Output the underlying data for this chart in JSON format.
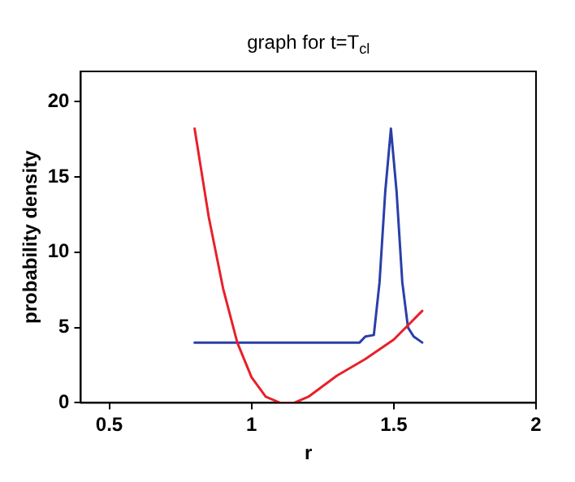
{
  "chart_data": {
    "type": "line",
    "title": "graph for t=T$_{cl}$",
    "xlabel": "r",
    "ylabel": "probability density",
    "xlim": [
      0.4,
      2
    ],
    "xticks": [
      0.5,
      1,
      1.5,
      2
    ],
    "ylim": [
      0,
      22
    ],
    "yticks": [
      0,
      5,
      10,
      15,
      20
    ],
    "marker": "none",
    "series": [
      {
        "color": "#e8202a",
        "x": [
          0.8,
          0.85,
          0.9,
          0.95,
          1.0,
          1.05,
          1.1,
          1.15,
          1.2,
          1.3,
          1.4,
          1.5,
          1.6
        ],
        "values": [
          18.2,
          12.3,
          7.6,
          4,
          1.7,
          0.4,
          0,
          0,
          0.4,
          1.8,
          2.9,
          4.2,
          6.1
        ]
      },
      {
        "color": "#2a3fa8",
        "x": [
          0.8,
          1.38,
          1.4,
          1.43,
          1.45,
          1.47,
          1.49,
          1.51,
          1.53,
          1.55,
          1.57,
          1.6
        ],
        "values": [
          4,
          4,
          4.4,
          4.5,
          8,
          14,
          18.2,
          14,
          8,
          5,
          4.4,
          4
        ]
      }
    ]
  }
}
